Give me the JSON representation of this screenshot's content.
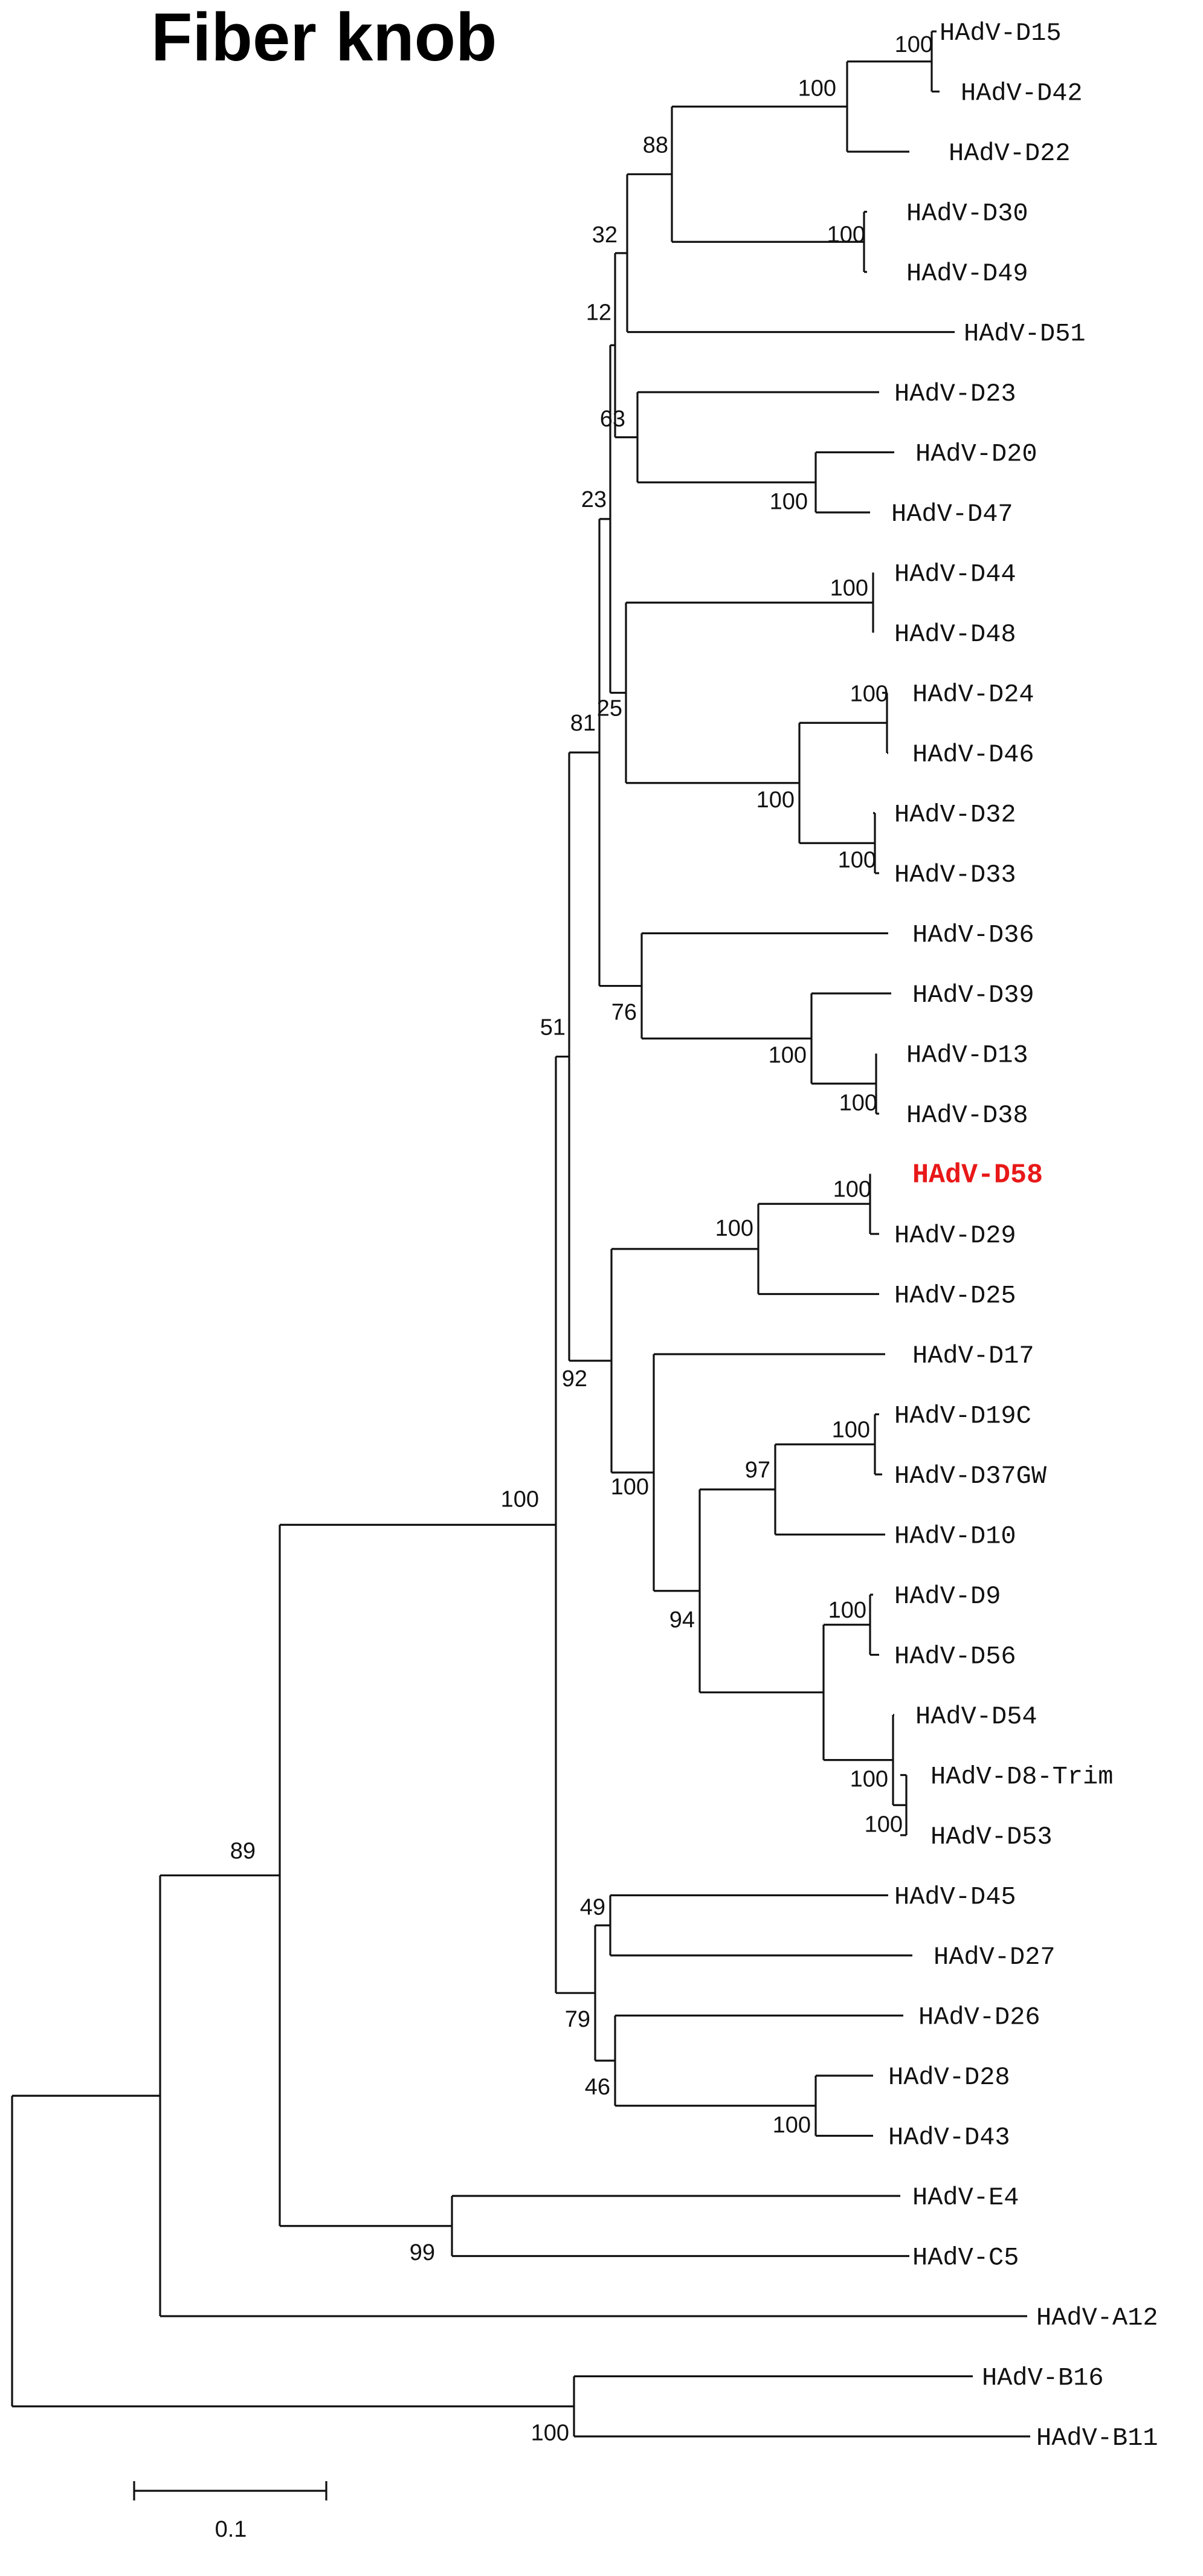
{
  "title": "Fiber knob",
  "scale_bar": {
    "label": "0.1"
  },
  "colors": {
    "branch": "#111111",
    "label": "#111111",
    "highlight": "#e81818"
  },
  "taxa": [
    {
      "label": "HAdV-D15"
    },
    {
      "label": "HAdV-D42"
    },
    {
      "label": "HAdV-D22"
    },
    {
      "label": "HAdV-D30"
    },
    {
      "label": "HAdV-D49"
    },
    {
      "label": "HAdV-D51"
    },
    {
      "label": "HAdV-D23"
    },
    {
      "label": "HAdV-D20"
    },
    {
      "label": "HAdV-D47"
    },
    {
      "label": "HAdV-D44"
    },
    {
      "label": "HAdV-D48"
    },
    {
      "label": "HAdV-D24"
    },
    {
      "label": "HAdV-D46"
    },
    {
      "label": "HAdV-D32"
    },
    {
      "label": "HAdV-D33"
    },
    {
      "label": "HAdV-D36"
    },
    {
      "label": "HAdV-D39"
    },
    {
      "label": "HAdV-D13"
    },
    {
      "label": "HAdV-D38"
    },
    {
      "label": "HAdV-D58",
      "highlight": true
    },
    {
      "label": "HAdV-D29"
    },
    {
      "label": "HAdV-D25"
    },
    {
      "label": "HAdV-D17"
    },
    {
      "label": "HAdV-D19C"
    },
    {
      "label": "HAdV-D37GW"
    },
    {
      "label": "HAdV-D10"
    },
    {
      "label": "HAdV-D9"
    },
    {
      "label": "HAdV-D56"
    },
    {
      "label": "HAdV-D54"
    },
    {
      "label": "HAdV-D8-Trim"
    },
    {
      "label": "HAdV-D53"
    },
    {
      "label": "HAdV-D45"
    },
    {
      "label": "HAdV-D27"
    },
    {
      "label": "HAdV-D26"
    },
    {
      "label": "HAdV-D28"
    },
    {
      "label": "HAdV-D43"
    },
    {
      "label": "HAdV-E4"
    },
    {
      "label": "HAdV-C5"
    },
    {
      "label": "HAdV-A12"
    },
    {
      "label": "HAdV-B16"
    },
    {
      "label": "HAdV-B11"
    }
  ],
  "supports": [
    "100",
    "100",
    "88",
    "100",
    "32",
    "12",
    "63",
    "100",
    "23",
    "100",
    "100",
    "100",
    "100",
    "25",
    "81",
    "76",
    "100",
    "100",
    "100",
    "100",
    "92",
    "100",
    "97",
    "100",
    "94",
    "100",
    "100",
    "100",
    "51",
    "49",
    "79",
    "46",
    "100",
    "100",
    "89",
    "99",
    "100"
  ]
}
